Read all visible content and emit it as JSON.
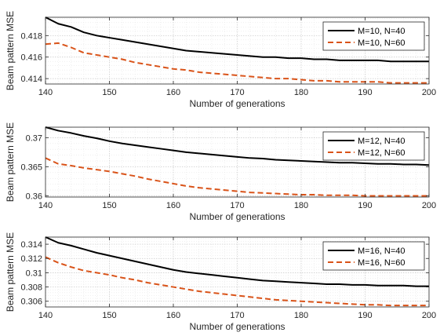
{
  "colors": {
    "series1": "#000000",
    "series2": "#d95319"
  },
  "chart_data": [
    {
      "type": "line",
      "title": "",
      "xlabel": "Number of generations",
      "ylabel": "Beam pattern MSE",
      "xlim": [
        140,
        200
      ],
      "ylim": [
        0.4135,
        0.4197
      ],
      "xticks": [
        140,
        150,
        160,
        170,
        180,
        190,
        200
      ],
      "yticks": [
        0.414,
        0.416,
        0.418
      ],
      "ytick_labels": [
        "0.414",
        "0.416",
        "0.418"
      ],
      "grid": true,
      "legend_position": "top-right",
      "x": [
        140,
        142,
        144,
        146,
        148,
        150,
        152,
        154,
        156,
        158,
        160,
        162,
        164,
        166,
        168,
        170,
        172,
        174,
        176,
        178,
        180,
        182,
        184,
        186,
        188,
        190,
        192,
        194,
        196,
        198,
        200
      ],
      "series": [
        {
          "name": "M=10, N=40",
          "style": "solid",
          "values": [
            0.4197,
            0.4191,
            0.4188,
            0.4183,
            0.418,
            0.4178,
            0.4176,
            0.4174,
            0.4172,
            0.417,
            0.4168,
            0.4166,
            0.4165,
            0.4164,
            0.4163,
            0.4162,
            0.4161,
            0.416,
            0.416,
            0.4159,
            0.4159,
            0.4158,
            0.4158,
            0.4157,
            0.4157,
            0.4157,
            0.4157,
            0.4156,
            0.4156,
            0.4156,
            0.4156
          ]
        },
        {
          "name": "M=10, N=60",
          "style": "dashed",
          "values": [
            0.4172,
            0.4173,
            0.4169,
            0.4164,
            0.4162,
            0.416,
            0.4158,
            0.4155,
            0.4153,
            0.4151,
            0.4149,
            0.4148,
            0.4146,
            0.4145,
            0.4144,
            0.4143,
            0.4142,
            0.4141,
            0.414,
            0.414,
            0.4139,
            0.4138,
            0.4138,
            0.4137,
            0.4137,
            0.4137,
            0.4137,
            0.4136,
            0.4136,
            0.4136,
            0.4136
          ]
        }
      ]
    },
    {
      "type": "line",
      "title": "",
      "xlabel": "Number of generations",
      "ylabel": "Beam pattern MSE",
      "xlim": [
        140,
        200
      ],
      "ylim": [
        0.3598,
        0.3718
      ],
      "xticks": [
        140,
        150,
        160,
        170,
        180,
        190,
        200
      ],
      "yticks": [
        0.36,
        0.365,
        0.37
      ],
      "ytick_labels": [
        "0.36",
        "0.365",
        "0.37"
      ],
      "grid": true,
      "legend_position": "top-right",
      "x": [
        140,
        142,
        144,
        146,
        148,
        150,
        152,
        154,
        156,
        158,
        160,
        162,
        164,
        166,
        168,
        170,
        172,
        174,
        176,
        178,
        180,
        182,
        184,
        186,
        188,
        190,
        192,
        194,
        196,
        198,
        200
      ],
      "series": [
        {
          "name": "M=12, N=40",
          "style": "solid",
          "values": [
            0.3718,
            0.3712,
            0.3708,
            0.3703,
            0.3699,
            0.3694,
            0.369,
            0.3687,
            0.3684,
            0.3681,
            0.3678,
            0.3675,
            0.3673,
            0.3671,
            0.3669,
            0.3667,
            0.3665,
            0.3664,
            0.3662,
            0.3661,
            0.366,
            0.3659,
            0.3658,
            0.3657,
            0.3657,
            0.3656,
            0.3655,
            0.3655,
            0.3654,
            0.3654,
            0.3653
          ]
        },
        {
          "name": "M=12, N=60",
          "style": "dashed",
          "values": [
            0.3665,
            0.3655,
            0.3652,
            0.3648,
            0.3645,
            0.3642,
            0.3638,
            0.3634,
            0.3629,
            0.3625,
            0.3621,
            0.3617,
            0.3614,
            0.3612,
            0.361,
            0.3608,
            0.3606,
            0.3605,
            0.3604,
            0.3603,
            0.3602,
            0.3602,
            0.3601,
            0.3601,
            0.3601,
            0.36,
            0.36,
            0.36,
            0.36,
            0.36,
            0.36
          ]
        }
      ]
    },
    {
      "type": "line",
      "title": "",
      "xlabel": "Number of generations",
      "ylabel": "Beam pattern MSE",
      "xlim": [
        140,
        200
      ],
      "ylim": [
        0.3052,
        0.315
      ],
      "xticks": [
        140,
        150,
        160,
        170,
        180,
        190,
        200
      ],
      "yticks": [
        0.306,
        0.308,
        0.31,
        0.312,
        0.314
      ],
      "ytick_labels": [
        "0.306",
        "0.308",
        "0.31",
        "0.312",
        "0.314"
      ],
      "grid": true,
      "legend_position": "top-right",
      "x": [
        140,
        142,
        144,
        146,
        148,
        150,
        152,
        154,
        156,
        158,
        160,
        162,
        164,
        166,
        168,
        170,
        172,
        174,
        176,
        178,
        180,
        182,
        184,
        186,
        188,
        190,
        192,
        194,
        196,
        198,
        200
      ],
      "series": [
        {
          "name": "M=16, N=40",
          "style": "solid",
          "values": [
            0.315,
            0.3142,
            0.3138,
            0.3133,
            0.3128,
            0.3124,
            0.312,
            0.3116,
            0.3112,
            0.3108,
            0.3104,
            0.3101,
            0.3099,
            0.3097,
            0.3095,
            0.3093,
            0.3091,
            0.3089,
            0.3088,
            0.3087,
            0.3086,
            0.3085,
            0.3084,
            0.3084,
            0.3083,
            0.3083,
            0.3082,
            0.3082,
            0.3082,
            0.3081,
            0.3081
          ]
        },
        {
          "name": "M=16, N=60",
          "style": "dashed",
          "values": [
            0.3122,
            0.3114,
            0.3108,
            0.3103,
            0.31,
            0.3097,
            0.3093,
            0.309,
            0.3086,
            0.3083,
            0.308,
            0.3077,
            0.3074,
            0.3072,
            0.307,
            0.3068,
            0.3066,
            0.3064,
            0.3062,
            0.3061,
            0.306,
            0.3059,
            0.3058,
            0.3057,
            0.3056,
            0.3055,
            0.3055,
            0.3054,
            0.3054,
            0.3054,
            0.3054
          ]
        }
      ]
    }
  ]
}
